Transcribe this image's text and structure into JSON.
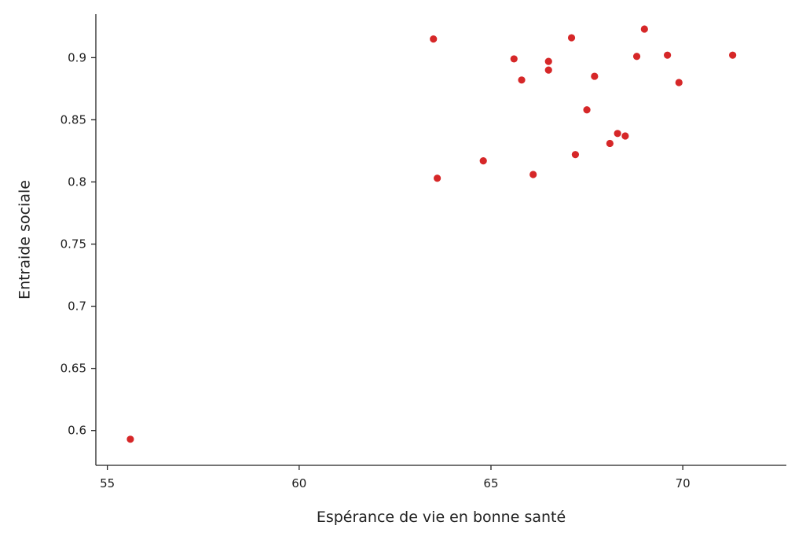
{
  "chart_data": {
    "type": "scatter",
    "title": "",
    "xlabel": "Espérance de vie en bonne santé",
    "ylabel": "Entraide sociale",
    "xlim": [
      54.7,
      72.7
    ],
    "ylim": [
      0.572,
      0.935
    ],
    "x_ticks": [
      55,
      60,
      65,
      70
    ],
    "y_ticks": [
      0.6,
      0.65,
      0.7,
      0.75,
      0.8,
      0.85,
      0.9
    ],
    "x_tick_labels": [
      "55",
      "60",
      "65",
      "70"
    ],
    "y_tick_labels": [
      "0.6",
      "0.65",
      "0.7",
      "0.75",
      "0.8",
      "0.85",
      "0.9"
    ],
    "grid": false,
    "marker_color": "#d62728",
    "points": [
      {
        "x": 55.6,
        "y": 0.593
      },
      {
        "x": 63.5,
        "y": 0.915
      },
      {
        "x": 63.6,
        "y": 0.803
      },
      {
        "x": 64.8,
        "y": 0.817
      },
      {
        "x": 65.6,
        "y": 0.899
      },
      {
        "x": 65.8,
        "y": 0.882
      },
      {
        "x": 66.1,
        "y": 0.806
      },
      {
        "x": 66.5,
        "y": 0.897
      },
      {
        "x": 66.5,
        "y": 0.89
      },
      {
        "x": 67.1,
        "y": 0.916
      },
      {
        "x": 67.2,
        "y": 0.822
      },
      {
        "x": 67.5,
        "y": 0.858
      },
      {
        "x": 67.7,
        "y": 0.885
      },
      {
        "x": 68.1,
        "y": 0.831
      },
      {
        "x": 68.3,
        "y": 0.839
      },
      {
        "x": 68.5,
        "y": 0.837
      },
      {
        "x": 68.8,
        "y": 0.901
      },
      {
        "x": 69.0,
        "y": 0.923
      },
      {
        "x": 69.6,
        "y": 0.902
      },
      {
        "x": 69.9,
        "y": 0.88
      },
      {
        "x": 71.3,
        "y": 0.902
      }
    ]
  }
}
